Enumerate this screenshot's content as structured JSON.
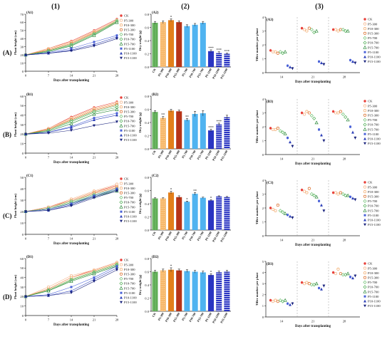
{
  "column_labels": [
    "(1)",
    "(2)",
    "(3)"
  ],
  "row_labels": [
    "(A)",
    "(B)",
    "(C)",
    "(D)"
  ],
  "colors": {
    "CK": "#e8403a",
    "P5-300": "#f4b183",
    "P10-300": "#f2a765",
    "P15-300": "#d9661f",
    "P5-700": "#70c174",
    "P10-700": "#4fae55",
    "P15-700": "#2e8b3c",
    "P5-1100": "#4a62d8",
    "P10-1100": "#2c3fb8",
    "P15-1100": "#1a237e",
    "bar_CK": "#5daa53",
    "bar_P300": "#f39a2b",
    "bar_P300b": "#e27f1b",
    "bar_P300c": "#b73418",
    "bar_P700": "#4fb3f0",
    "bar_P1100": "#2a35c2"
  },
  "chart_data": [
    {
      "panel": "(A1)",
      "type": "line",
      "xlabel": "Days after transplanting",
      "ylabel": "Plant height (cm)",
      "x": [
        0,
        7,
        14,
        21,
        28
      ],
      "ylim": [
        0,
        70
      ],
      "yticks": [
        0,
        10,
        20,
        30,
        40,
        50,
        60,
        70
      ],
      "series": [
        {
          "name": "CK",
          "values": [
            20,
            28,
            37,
            50,
            64
          ]
        },
        {
          "name": "P5-300",
          "values": [
            20,
            28,
            36,
            49,
            63
          ]
        },
        {
          "name": "P10-300",
          "values": [
            20,
            27,
            35,
            48,
            62
          ]
        },
        {
          "name": "P15-300",
          "values": [
            20,
            26,
            34,
            47,
            61
          ]
        },
        {
          "name": "P5-700",
          "values": [
            20,
            25,
            33,
            46,
            62
          ]
        },
        {
          "name": "P10-700",
          "values": [
            20,
            25,
            32,
            45,
            61
          ]
        },
        {
          "name": "P15-700",
          "values": [
            20,
            24,
            31,
            44,
            60
          ]
        },
        {
          "name": "P5-1100",
          "values": [
            20,
            23,
            28,
            36,
            44
          ]
        },
        {
          "name": "P10-1100",
          "values": [
            20,
            22,
            26,
            33,
            42
          ]
        },
        {
          "name": "P15-1100",
          "values": [
            20,
            22,
            25,
            31,
            40
          ]
        }
      ]
    },
    {
      "panel": "(A2)",
      "type": "bar",
      "ylabel": "Dry weight (g)",
      "categories": [
        "CK",
        "P5-300",
        "P10-300",
        "P15-300",
        "P5-700",
        "P10-700",
        "P15-700",
        "P5-1100",
        "P10-1100",
        "P15-1100"
      ],
      "values": [
        0.67,
        0.68,
        0.71,
        0.68,
        0.62,
        0.64,
        0.67,
        0.24,
        0.21,
        0.2
      ],
      "errors": [
        0.02,
        0.02,
        0.02,
        0.02,
        0.02,
        0.02,
        0.02,
        0.02,
        0.02,
        0.01
      ],
      "sig": [
        "",
        "",
        "*",
        "",
        "",
        "",
        "",
        "***",
        "***",
        "***"
      ],
      "ylim": [
        0,
        0.8
      ],
      "yticks": [
        0,
        0.2,
        0.4,
        0.6,
        0.8
      ]
    },
    {
      "panel": "(A3)",
      "type": "scatter",
      "xlabel": "Days after transplanting",
      "ylabel": "Tiller number per plant",
      "x_categories": [
        "14",
        "21",
        "28"
      ],
      "ylim": [
        0,
        4
      ],
      "yticks": [
        0,
        1,
        2,
        3,
        4
      ],
      "series": [
        {
          "name": "CK",
          "values": [
            1.6,
            3.2,
            3.1
          ]
        },
        {
          "name": "P5-300",
          "values": [
            1.5,
            3.1,
            3.1
          ]
        },
        {
          "name": "P10-300",
          "values": [
            1.5,
            3.0,
            3.0
          ]
        },
        {
          "name": "P15-300",
          "values": [
            1.4,
            3.2,
            3.1
          ]
        },
        {
          "name": "P5-700",
          "values": [
            1.5,
            3.1,
            3.1
          ]
        },
        {
          "name": "P10-700",
          "values": [
            1.4,
            2.9,
            3.0
          ]
        },
        {
          "name": "P15-700",
          "values": [
            1.5,
            3.0,
            3.0
          ]
        },
        {
          "name": "P5-1100",
          "values": [
            0.5,
            0.8,
            0.9
          ]
        },
        {
          "name": "P10-1100",
          "values": [
            0.4,
            0.7,
            0.8
          ]
        },
        {
          "name": "P15-1100",
          "values": [
            0.3,
            0.6,
            0.7
          ]
        }
      ]
    },
    {
      "panel": "(B1)",
      "type": "line",
      "xlabel": "Days after transplanting",
      "ylabel": "Plant height (cm)",
      "x": [
        0,
        7,
        14,
        21,
        28
      ],
      "ylim": [
        0,
        60
      ],
      "yticks": [
        0,
        10,
        20,
        30,
        40,
        50,
        60
      ],
      "series": [
        {
          "name": "CK",
          "values": [
            20,
            26,
            38,
            48,
            54
          ]
        },
        {
          "name": "P5-300",
          "values": [
            20,
            26,
            37,
            47,
            53
          ]
        },
        {
          "name": "P10-300",
          "values": [
            20,
            25,
            36,
            46,
            52
          ]
        },
        {
          "name": "P15-300",
          "values": [
            20,
            25,
            35,
            45,
            51
          ]
        },
        {
          "name": "P5-700",
          "values": [
            20,
            24,
            34,
            44,
            50
          ]
        },
        {
          "name": "P10-700",
          "values": [
            20,
            24,
            33,
            43,
            48
          ]
        },
        {
          "name": "P15-700",
          "values": [
            20,
            23,
            31,
            41,
            46
          ]
        },
        {
          "name": "P5-1100",
          "values": [
            20,
            22,
            28,
            37,
            42
          ]
        },
        {
          "name": "P10-1100",
          "values": [
            20,
            22,
            27,
            35,
            40
          ]
        },
        {
          "name": "P15-1100",
          "values": [
            20,
            21,
            24,
            29,
            33
          ]
        }
      ]
    },
    {
      "panel": "(B2)",
      "type": "bar",
      "ylabel": "Dry weight (g)",
      "categories": [
        "CK",
        "P5-300",
        "P10-300",
        "P15-300",
        "P5-700",
        "P10-700",
        "P15-700",
        "P5-1100",
        "P10-1100",
        "P15-1100"
      ],
      "values": [
        0.56,
        0.47,
        0.58,
        0.57,
        0.44,
        0.53,
        0.54,
        0.28,
        0.37,
        0.48
      ],
      "errors": [
        0.02,
        0.02,
        0.02,
        0.02,
        0.02,
        0.04,
        0.04,
        0.02,
        0.02,
        0.03
      ],
      "sig": [
        "",
        "**",
        "",
        "",
        "**",
        "",
        "",
        "***",
        "***",
        ""
      ],
      "ylim": [
        0,
        0.8
      ],
      "yticks": [
        0,
        0.2,
        0.4,
        0.6,
        0.8
      ]
    },
    {
      "panel": "(B3)",
      "type": "scatter",
      "xlabel": "Days after transplanting",
      "ylabel": "Tiller number per plant",
      "x_categories": [
        "14",
        "21",
        "28"
      ],
      "ylim": [
        0,
        4
      ],
      "yticks": [
        0,
        1,
        2,
        3,
        4
      ],
      "series": [
        {
          "name": "CK",
          "values": [
            1.9,
            3.0,
            3.1
          ]
        },
        {
          "name": "P5-300",
          "values": [
            1.8,
            2.9,
            3.0
          ]
        },
        {
          "name": "P10-300",
          "values": [
            1.8,
            3.1,
            3.0
          ]
        },
        {
          "name": "P15-300",
          "values": [
            1.9,
            3.0,
            3.1
          ]
        },
        {
          "name": "P5-700",
          "values": [
            1.7,
            2.8,
            2.9
          ]
        },
        {
          "name": "P10-700",
          "values": [
            1.6,
            2.6,
            2.7
          ]
        },
        {
          "name": "P15-700",
          "values": [
            1.5,
            2.3,
            2.5
          ]
        },
        {
          "name": "P5-1100",
          "values": [
            1.2,
            1.8,
            2.0
          ]
        },
        {
          "name": "P10-1100",
          "values": [
            0.9,
            1.4,
            1.6
          ]
        },
        {
          "name": "P15-1100",
          "values": [
            0.6,
            1.0,
            1.2
          ]
        }
      ]
    },
    {
      "panel": "(C1)",
      "type": "line",
      "xlabel": "Days after transplanting",
      "ylabel": "Plant height (cm)",
      "x": [
        0,
        7,
        14,
        21,
        28
      ],
      "ylim": [
        0,
        50
      ],
      "yticks": [
        0,
        10,
        20,
        30,
        40,
        50
      ],
      "series": [
        {
          "name": "CK",
          "values": [
            20,
            24,
            30,
            37,
            43
          ]
        },
        {
          "name": "P5-300",
          "values": [
            20,
            24,
            31,
            38,
            44
          ]
        },
        {
          "name": "P10-300",
          "values": [
            20,
            23,
            30,
            37,
            42
          ]
        },
        {
          "name": "P15-300",
          "values": [
            20,
            23,
            29,
            36,
            41
          ]
        },
        {
          "name": "P5-700",
          "values": [
            20,
            23,
            29,
            35,
            40
          ]
        },
        {
          "name": "P10-700",
          "values": [
            20,
            22,
            28,
            34,
            39
          ]
        },
        {
          "name": "P15-700",
          "values": [
            20,
            22,
            27,
            33,
            38
          ]
        },
        {
          "name": "P5-1100",
          "values": [
            20,
            22,
            27,
            34,
            40
          ]
        },
        {
          "name": "P10-1100",
          "values": [
            20,
            21,
            26,
            33,
            39
          ]
        },
        {
          "name": "P15-1100",
          "values": [
            20,
            21,
            25,
            32,
            38
          ]
        }
      ]
    },
    {
      "panel": "(C2)",
      "type": "bar",
      "ylabel": "Dry weight (g)",
      "categories": [
        "CK",
        "P5-300",
        "P10-300",
        "P15-300",
        "P5-700",
        "P10-700",
        "P15-700",
        "P5-1100",
        "P10-1100",
        "P15-1100"
      ],
      "values": [
        0.48,
        0.48,
        0.57,
        0.5,
        0.43,
        0.55,
        0.49,
        0.45,
        0.51,
        0.5
      ],
      "errors": [
        0.01,
        0.01,
        0.02,
        0.02,
        0.01,
        0.02,
        0.01,
        0.01,
        0.01,
        0.01
      ],
      "sig": [
        "",
        "",
        "*",
        "",
        "*",
        "**",
        "",
        "*",
        "",
        ""
      ],
      "ylim": [
        0,
        0.8
      ],
      "yticks": [
        0,
        0.2,
        0.4,
        0.6,
        0.8
      ]
    },
    {
      "panel": "(C3)",
      "type": "scatter",
      "xlabel": "Days after transplanting",
      "ylabel": "Tiller number per plant",
      "x_categories": [
        "14",
        "21",
        "28"
      ],
      "ylim": [
        0,
        4
      ],
      "yticks": [
        0,
        1,
        2,
        3,
        4
      ],
      "series": [
        {
          "name": "CK",
          "values": [
            2.0,
            3.3,
            3.1
          ]
        },
        {
          "name": "P5-300",
          "values": [
            1.9,
            3.2,
            3.1
          ]
        },
        {
          "name": "P10-300",
          "values": [
            1.8,
            3.1,
            3.0
          ]
        },
        {
          "name": "P15-300",
          "values": [
            2.2,
            3.4,
            3.1
          ]
        },
        {
          "name": "P5-700",
          "values": [
            1.8,
            3.0,
            3.0
          ]
        },
        {
          "name": "P10-700",
          "values": [
            1.7,
            2.9,
            2.9
          ]
        },
        {
          "name": "P15-700",
          "values": [
            1.6,
            2.8,
            2.9
          ]
        },
        {
          "name": "P5-1100",
          "values": [
            1.5,
            2.5,
            2.8
          ]
        },
        {
          "name": "P10-1100",
          "values": [
            1.4,
            2.2,
            2.7
          ]
        },
        {
          "name": "P15-1100",
          "values": [
            1.3,
            1.8,
            2.6
          ]
        }
      ]
    },
    {
      "panel": "(D1)",
      "type": "line",
      "xlabel": "Days after transplanting",
      "ylabel": "Plant height (cm)",
      "x": [
        0,
        7,
        14,
        21,
        28
      ],
      "ylim": [
        0,
        60
      ],
      "yticks": [
        0,
        10,
        20,
        30,
        40,
        50,
        60
      ],
      "series": [
        {
          "name": "CK",
          "values": [
            20,
            28,
            40,
            48,
            56
          ]
        },
        {
          "name": "P5-300",
          "values": [
            20,
            30,
            42,
            48,
            56
          ]
        },
        {
          "name": "P10-300",
          "values": [
            20,
            28,
            40,
            47,
            55
          ]
        },
        {
          "name": "P15-300",
          "values": [
            20,
            27,
            38,
            46,
            54
          ]
        },
        {
          "name": "P5-700",
          "values": [
            20,
            27,
            38,
            46,
            54
          ]
        },
        {
          "name": "P10-700",
          "values": [
            20,
            26,
            37,
            45,
            53
          ]
        },
        {
          "name": "P15-700",
          "values": [
            20,
            26,
            36,
            44,
            52
          ]
        },
        {
          "name": "P5-1100",
          "values": [
            20,
            22,
            30,
            40,
            52
          ]
        },
        {
          "name": "P10-1100",
          "values": [
            20,
            21,
            26,
            38,
            50
          ]
        },
        {
          "name": "P15-1100",
          "values": [
            20,
            21,
            24,
            36,
            48
          ]
        }
      ]
    },
    {
      "panel": "(D2)",
      "type": "bar",
      "ylabel": "Dry weight (g)",
      "categories": [
        "CK",
        "P5-300",
        "P10-300",
        "P15-300",
        "P5-700",
        "P10-700",
        "P15-700",
        "P5-1100",
        "P10-1100",
        "P15-1100"
      ],
      "values": [
        0.6,
        0.62,
        0.63,
        0.62,
        0.61,
        0.6,
        0.59,
        0.55,
        0.59,
        0.6
      ],
      "errors": [
        0.02,
        0.02,
        0.03,
        0.02,
        0.02,
        0.02,
        0.02,
        0.02,
        0.02,
        0.02
      ],
      "sig": [
        "",
        "",
        "*",
        "",
        "",
        "",
        "",
        "*",
        "",
        ""
      ],
      "ylim": [
        0,
        0.8
      ],
      "yticks": [
        0,
        0.2,
        0.4,
        0.6,
        0.8
      ]
    },
    {
      "panel": "(D3)",
      "type": "scatter",
      "xlabel": "Days after transplanting",
      "ylabel": "Tiller number per plant",
      "x_categories": [
        "14",
        "21",
        "28"
      ],
      "ylim": [
        0,
        5
      ],
      "yticks": [
        0,
        1,
        2,
        3,
        4,
        5
      ],
      "series": [
        {
          "name": "CK",
          "values": [
            1.5,
            3.1,
            4.0
          ]
        },
        {
          "name": "P5-300",
          "values": [
            1.4,
            3.0,
            3.9
          ]
        },
        {
          "name": "P10-300",
          "values": [
            1.5,
            3.1,
            4.3
          ]
        },
        {
          "name": "P15-300",
          "values": [
            1.4,
            3.0,
            3.9
          ]
        },
        {
          "name": "P5-700",
          "values": [
            1.5,
            2.9,
            3.8
          ]
        },
        {
          "name": "P10-700",
          "values": [
            1.4,
            2.9,
            3.8
          ]
        },
        {
          "name": "P15-700",
          "values": [
            1.5,
            3.0,
            3.9
          ]
        },
        {
          "name": "P5-1100",
          "values": [
            1.2,
            2.6,
            3.6
          ]
        },
        {
          "name": "P10-1100",
          "values": [
            1.1,
            2.5,
            3.5
          ]
        },
        {
          "name": "P15-1100",
          "values": [
            1.2,
            2.8,
            3.7
          ]
        }
      ]
    }
  ]
}
